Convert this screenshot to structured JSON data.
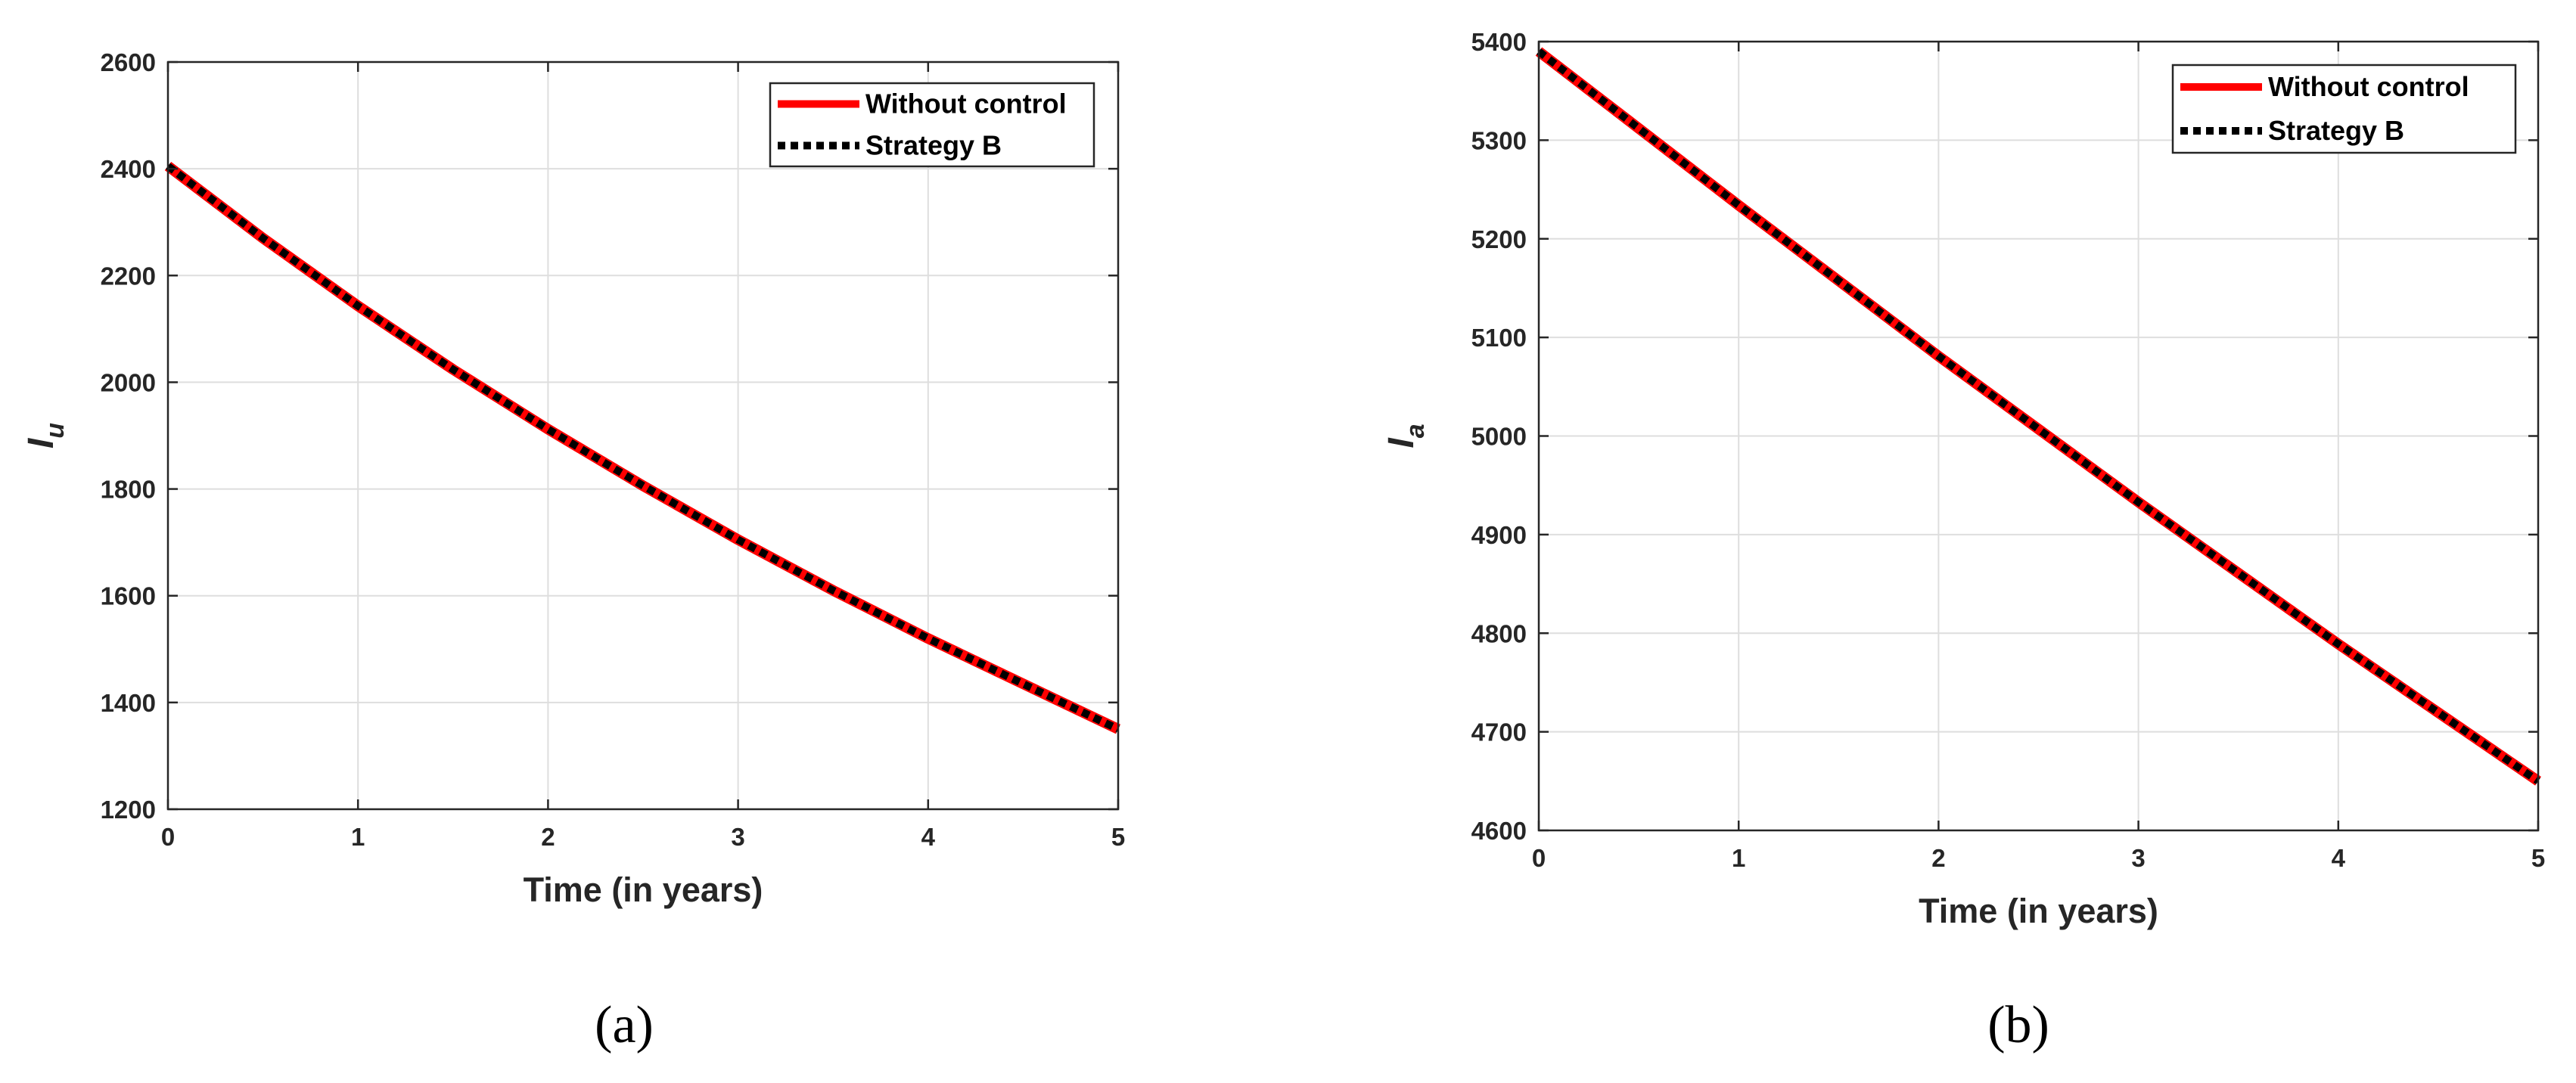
{
  "chart_data": [
    {
      "type": "line",
      "panel_label": "(a)",
      "xlabel": "Time (in years)",
      "ylabel": "I",
      "ylabel_subscript": "u",
      "xlim": [
        0,
        5
      ],
      "ylim": [
        1200,
        2600
      ],
      "xticks": [
        0,
        1,
        2,
        3,
        4,
        5
      ],
      "yticks": [
        1200,
        1400,
        1600,
        1800,
        2000,
        2200,
        2400,
        2600
      ],
      "grid": true,
      "legend_position": "top-right",
      "x": [
        0,
        0.5,
        1,
        1.5,
        2,
        2.5,
        3,
        3.5,
        4,
        4.5,
        5
      ],
      "series": [
        {
          "name": "Without control",
          "color": "#ff0000",
          "style": "solid",
          "values": [
            2405,
            2270,
            2143,
            2024,
            1912,
            1806,
            1705,
            1610,
            1520,
            1435,
            1350
          ]
        },
        {
          "name": "Strategy B",
          "color": "#000000",
          "style": "dotted",
          "values": [
            2405,
            2270,
            2143,
            2024,
            1912,
            1806,
            1705,
            1610,
            1520,
            1435,
            1350
          ]
        }
      ]
    },
    {
      "type": "line",
      "panel_label": "(b)",
      "xlabel": "Time (in years)",
      "ylabel": "I",
      "ylabel_subscript": "a",
      "xlim": [
        0,
        5
      ],
      "ylim": [
        4600,
        5400
      ],
      "xticks": [
        0,
        1,
        2,
        3,
        4,
        5
      ],
      "yticks": [
        4600,
        4700,
        4800,
        4900,
        5000,
        5100,
        5200,
        5300,
        5400
      ],
      "grid": true,
      "legend_position": "top-right",
      "x": [
        0,
        1,
        2,
        3,
        4,
        5
      ],
      "series": [
        {
          "name": "Without control",
          "color": "#ff0000",
          "style": "solid",
          "values": [
            5390,
            5234,
            5081,
            4933,
            4789,
            4650
          ]
        },
        {
          "name": "Strategy B",
          "color": "#000000",
          "style": "dotted",
          "values": [
            5390,
            5234,
            5081,
            4933,
            4789,
            4650
          ]
        }
      ]
    }
  ]
}
